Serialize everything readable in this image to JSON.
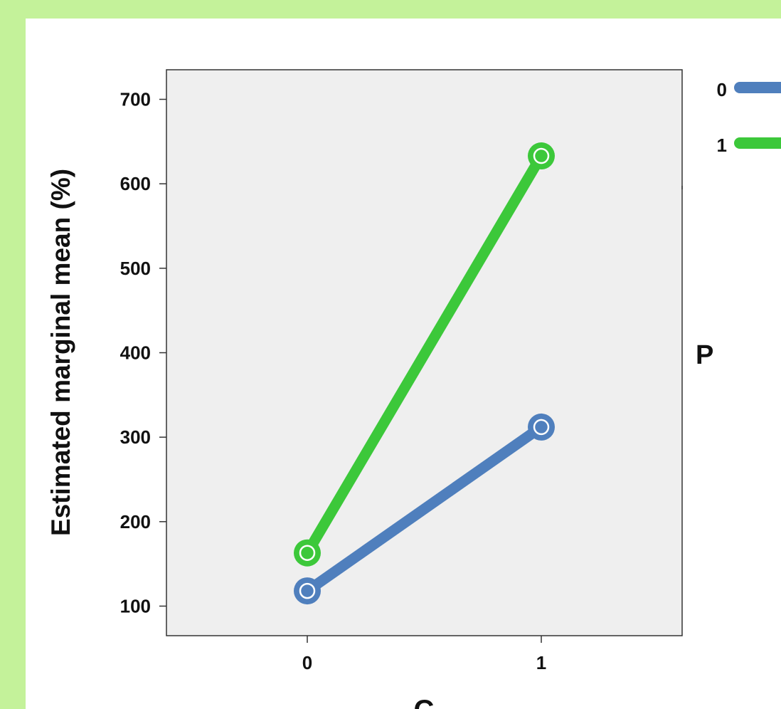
{
  "chart_data": {
    "type": "line",
    "title": "",
    "xlabel": "C",
    "ylabel": "Estimated marginal mean (%)",
    "categories": [
      "0",
      "1"
    ],
    "yticks": [
      100,
      200,
      300,
      400,
      500,
      600,
      700
    ],
    "ylim": [
      65,
      735
    ],
    "legend_title": "P",
    "legend_position": "right",
    "grid": false,
    "series": [
      {
        "name": "0",
        "color": "#4f7fbd",
        "values": [
          118,
          312
        ]
      },
      {
        "name": "1",
        "color": "#3cc83a",
        "values": [
          163,
          633
        ]
      }
    ]
  },
  "colors": {
    "page_background": "#c4f29a",
    "plot_background": "#efefef"
  }
}
